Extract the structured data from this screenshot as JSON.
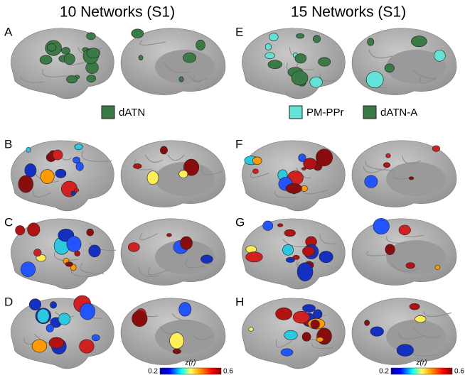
{
  "columns": [
    {
      "title": "10 Networks (S1)",
      "panels": [
        "A",
        "B",
        "C",
        "D"
      ],
      "legend": [
        {
          "label": "dATN",
          "color": "#3a7a47"
        }
      ],
      "colorbar": {
        "label": "z(r)",
        "min": 0.2,
        "max": 0.6
      }
    },
    {
      "title": "15 Networks (S1)",
      "panels": [
        "E",
        "F",
        "G",
        "H"
      ],
      "legend": [
        {
          "label": "PM-PPr",
          "color": "#63e3d6"
        },
        {
          "label": "dATN-A",
          "color": "#3a7a47"
        }
      ],
      "colorbar": {
        "label": "z(r)",
        "min": 0.2,
        "max": 0.6
      }
    }
  ]
}
